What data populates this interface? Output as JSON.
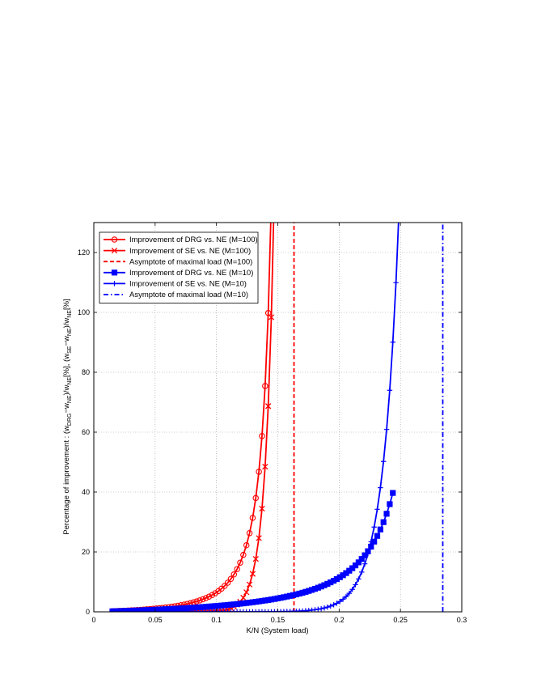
{
  "chart_data": {
    "type": "line",
    "xlabel": "K/N (System load)",
    "ylabel": "Percentage of improvement : (w_DRG−w_NE)/w_NE[%], (w_SE−w_NE)/w_NE[%]",
    "ylabel_parts": {
      "prefix": "Percentage of improvement : (w",
      "sub1": "DRG",
      "mid1": "−w",
      "sub2": "NE",
      "mid2": ")/w",
      "sub3": "NE",
      "mid3": "[%], (w",
      "sub4": "SE",
      "mid4": "−w",
      "sub5": "NE",
      "mid5": ")/w",
      "sub6": "NE",
      "suffix": "[%]"
    },
    "xlim": [
      0,
      0.3
    ],
    "ylim": [
      0,
      130
    ],
    "xticks": [
      0,
      0.05,
      0.1,
      0.15,
      0.2,
      0.25,
      0.3
    ],
    "xtick_labels": [
      "0",
      "0.05",
      "0.1",
      "0.15",
      "0.2",
      "0.25",
      "0.3"
    ],
    "yticks": [
      0,
      20,
      40,
      60,
      80,
      100,
      120
    ],
    "ytick_labels": [
      "0",
      "20",
      "40",
      "60",
      "80",
      "100",
      "120"
    ],
    "grid": true,
    "legend_position": "top-left",
    "series": [
      {
        "name": "Improvement of DRG vs. NE  (M=100)",
        "color": "#ff0000",
        "line": "solid",
        "marker": "circle",
        "model": {
          "form": "power",
          "a": 0.8,
          "asymptote": 0.162,
          "k": 2.3,
          "x_start": 0.0152,
          "x_end": 0.1453,
          "step": 0.00254
        }
      },
      {
        "name": "Improvement of SE vs. NE  (M=100)",
        "color": "#ff0000",
        "line": "solid",
        "marker": "x",
        "model": {
          "form": "log",
          "a": 8.83,
          "asymptote": 0.1632,
          "x_start": 0.0152,
          "x_end": 0.1606,
          "step": 0.00254
        }
      },
      {
        "name": "Asymptote of maximal load (M=100)",
        "color": "#ff0000",
        "line": "dashed",
        "marker": "none",
        "x": [
          0.1632,
          0.1632
        ],
        "y": [
          0,
          130
        ]
      },
      {
        "name": "Improvement of DRG vs. NE  (M=10)",
        "color": "#0000ff",
        "line": "solid",
        "marker": "square",
        "model": {
          "form": "power",
          "a": 2.05,
          "asymptote": 0.2845,
          "k": 1.55,
          "x_start": 0.0152,
          "x_end": 0.2447,
          "step": 0.00254
        }
      },
      {
        "name": "Improvement of SE vs. NE  (M=10)",
        "color": "#0000ff",
        "line": "solid",
        "marker": "plus",
        "model": {
          "form": "log",
          "a": 15.98,
          "asymptote": 0.2845,
          "x_start": 0.0152,
          "x_end": 0.2814,
          "step": 0.00254
        }
      },
      {
        "name": "Asymptote of maximal load (M=10)",
        "color": "#0000ff",
        "line": "dashdot",
        "marker": "none",
        "x": [
          0.2845,
          0.2845
        ],
        "y": [
          0,
          130
        ]
      }
    ]
  }
}
